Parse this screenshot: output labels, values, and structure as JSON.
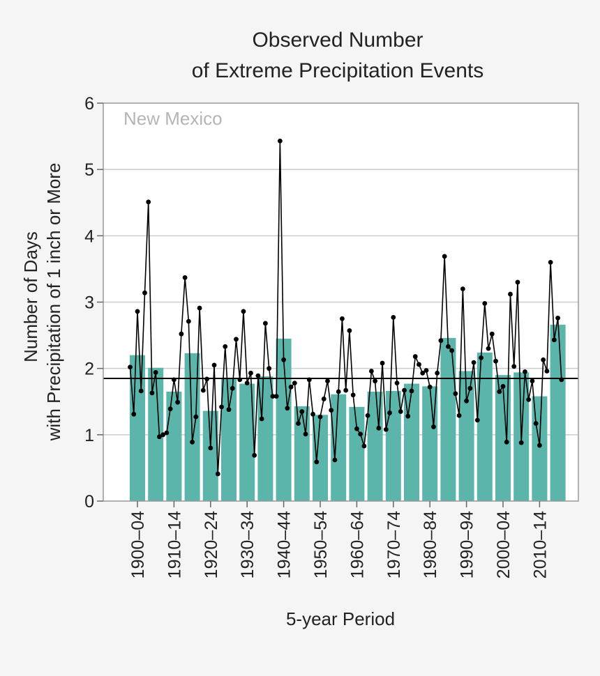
{
  "chart_data": {
    "type": "bar+line",
    "title": [
      "Observed Number",
      "of Extreme Precipitation Events"
    ],
    "subtitle": "New Mexico",
    "xlabel": "5-year Period",
    "ylabel": [
      "Number of Days",
      "with Precipitation of 1 inch or More"
    ],
    "ylim": [
      0,
      6
    ],
    "yticks": [
      0,
      1,
      2,
      3,
      4,
      5,
      6
    ],
    "grid": true,
    "colors": {
      "bars": "#5bb5aa",
      "line": "#000000",
      "average": "#000000",
      "grid": "#cccccc",
      "subtitle": "#b5b5b5"
    },
    "categories": [
      "1900–04",
      "1905–09",
      "1910–14",
      "1915–19",
      "1920–24",
      "1925–29",
      "1930–34",
      "1935–39",
      "1940–44",
      "1945–49",
      "1950–54",
      "1955–59",
      "1960–64",
      "1965–69",
      "1970–74",
      "1975–79",
      "1980–84",
      "1985–89",
      "1990–94",
      "1995–99",
      "2000–04",
      "2005–09",
      "2010–14",
      "2015–19"
    ],
    "xtick_labels": [
      "1900–04",
      "1910–14",
      "1920–24",
      "1930–34",
      "1940–44",
      "1950–54",
      "1960–64",
      "1970–74",
      "1980–84",
      "1990–94",
      "2000–04",
      "2010–14"
    ],
    "bar_values": [
      2.2,
      2.01,
      1.65,
      2.23,
      1.36,
      1.85,
      1.77,
      1.88,
      2.45,
      1.43,
      1.3,
      1.61,
      1.42,
      1.65,
      1.66,
      1.77,
      1.73,
      2.46,
      1.96,
      2.24,
      1.9,
      1.94,
      1.58,
      2.66
    ],
    "annual_start_year": 1900,
    "annual_values": [
      2.02,
      1.31,
      2.86,
      1.66,
      3.14,
      4.51,
      1.63,
      1.94,
      0.97,
      1.0,
      1.03,
      1.39,
      1.83,
      1.49,
      2.52,
      3.37,
      2.71,
      0.89,
      1.27,
      2.91,
      1.67,
      1.84,
      0.8,
      2.05,
      0.41,
      1.42,
      2.33,
      1.38,
      1.7,
      2.44,
      1.83,
      2.86,
      1.78,
      1.93,
      0.69,
      1.89,
      1.24,
      2.68,
      2.0,
      1.58,
      1.58,
      5.43,
      2.13,
      1.4,
      1.72,
      1.78,
      1.17,
      1.35,
      1.01,
      1.83,
      1.31,
      0.59,
      1.27,
      1.54,
      1.81,
      1.37,
      0.62,
      1.65,
      2.75,
      1.67,
      2.57,
      1.6,
      1.09,
      1.01,
      0.83,
      1.29,
      1.96,
      1.81,
      1.1,
      2.08,
      1.08,
      1.33,
      2.77,
      1.78,
      1.35,
      1.67,
      1.28,
      1.66,
      2.18,
      2.06,
      1.93,
      1.97,
      1.72,
      1.12,
      1.93,
      2.42,
      3.69,
      2.33,
      2.27,
      1.62,
      1.29,
      3.2,
      1.51,
      1.7,
      2.09,
      1.22,
      2.16,
      2.98,
      2.3,
      2.52,
      2.11,
      1.65,
      1.73,
      0.89,
      3.12,
      2.03,
      3.3,
      0.88,
      1.95,
      1.53,
      1.81,
      1.17,
      0.84,
      2.13,
      1.96,
      3.6,
      2.43,
      2.76,
      1.83
    ],
    "average": 1.85
  }
}
